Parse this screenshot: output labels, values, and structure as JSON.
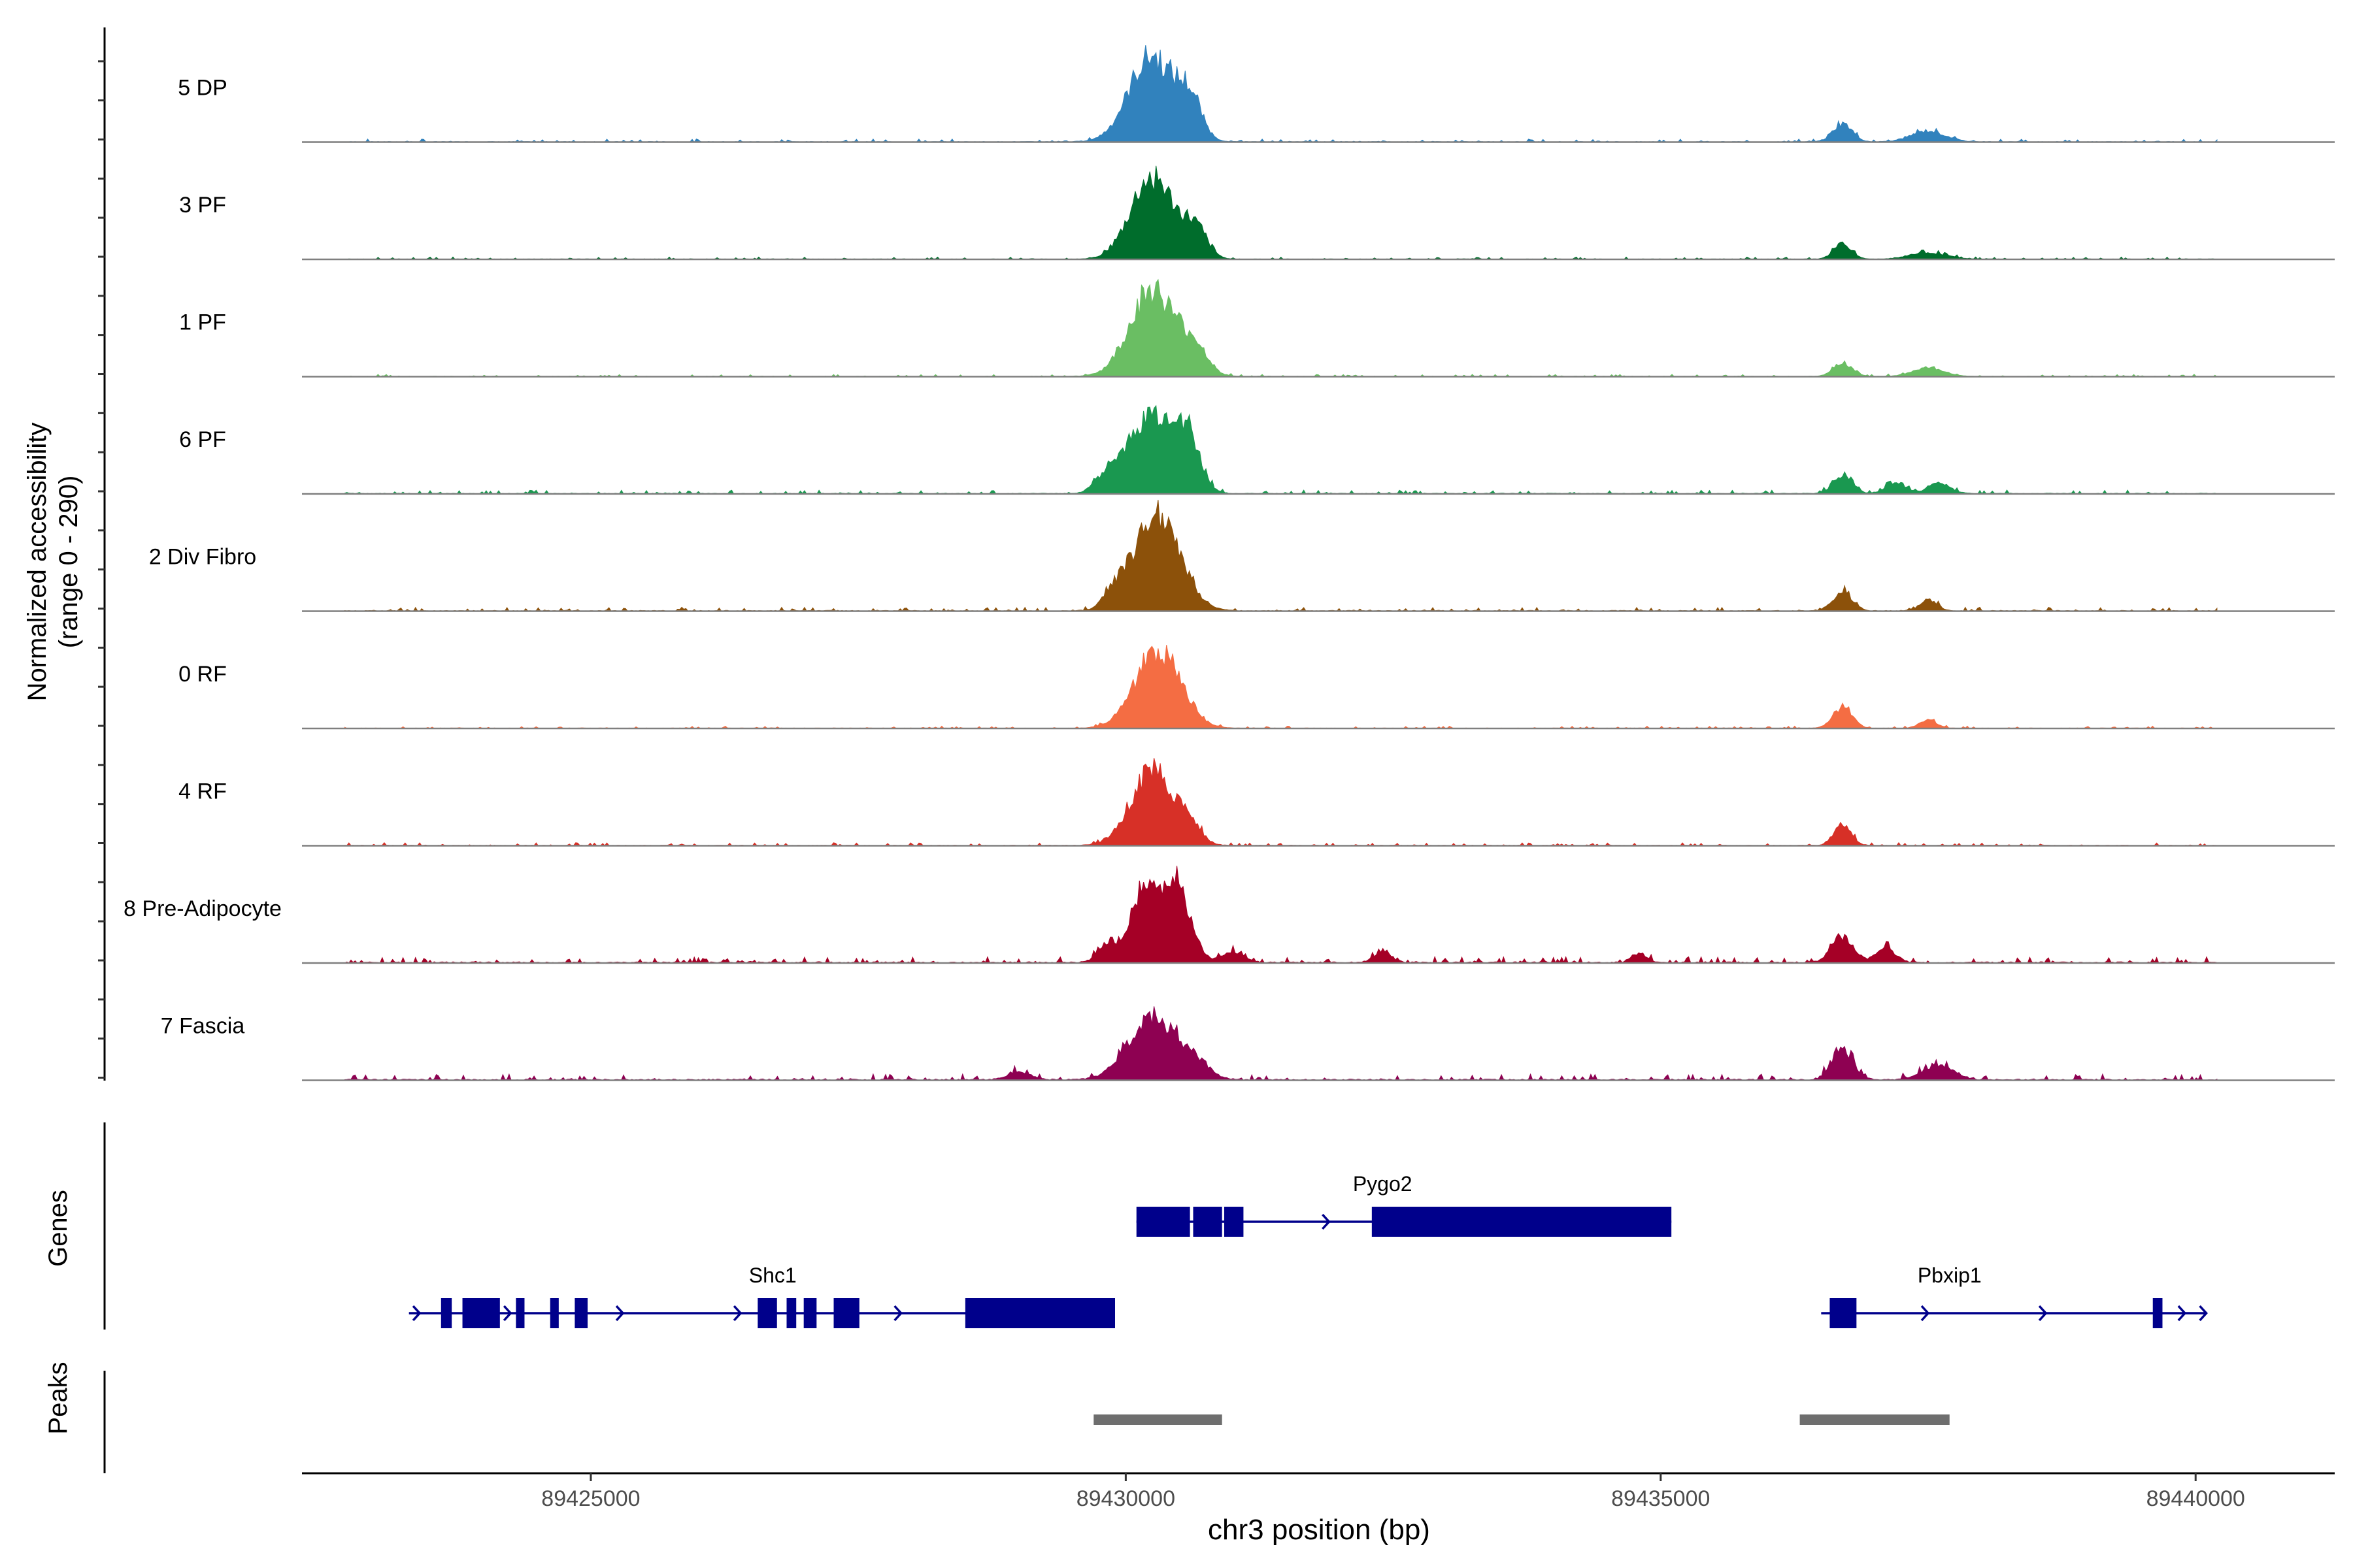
{
  "chart_data": {
    "type": "area",
    "title": "",
    "xlabel": "chr3 position (bp)",
    "xlim": [
      89422300,
      89441300
    ],
    "x_ticks": [
      89425000,
      89430000,
      89435000,
      89440000
    ],
    "x_tick_labels": [
      "89425000",
      "89430000",
      "89435000",
      "89440000"
    ],
    "coverage_ylabel_line1": "Normalized accessibility",
    "coverage_ylabel_line2": "(range 0 - 290)",
    "ylim": [
      0,
      290
    ],
    "genes_label": "Genes",
    "peaks_label": "Peaks",
    "series": [
      {
        "name": "5 DP",
        "color": "#3182BD",
        "peaks": [
          [
            89430240,
            225,
            210
          ],
          [
            89430600,
            95,
            110
          ],
          [
            89436700,
            48,
            90
          ],
          [
            89437500,
            28,
            160
          ]
        ],
        "bg": 4
      },
      {
        "name": "3 PF",
        "color": "#006D2C",
        "peaks": [
          [
            89430250,
            215,
            200
          ],
          [
            89430650,
            70,
            110
          ],
          [
            89436700,
            44,
            80
          ],
          [
            89437500,
            18,
            170
          ]
        ],
        "bg": 3
      },
      {
        "name": "1 PF",
        "color": "#6ABE63",
        "peaks": [
          [
            89430250,
            225,
            210
          ],
          [
            89430650,
            65,
            120
          ],
          [
            89436700,
            36,
            90
          ],
          [
            89437500,
            22,
            150
          ]
        ],
        "bg": 3
      },
      {
        "name": "6 PF",
        "color": "#1A9850",
        "peaks": [
          [
            89430200,
            200,
            200
          ],
          [
            89430550,
            150,
            130
          ],
          [
            89429800,
            35,
            100
          ],
          [
            89436700,
            48,
            90
          ],
          [
            89437200,
            30,
            90
          ],
          [
            89437600,
            30,
            100
          ]
        ],
        "bg": 5
      },
      {
        "name": "2 Div Fibro",
        "color": "#8C510A",
        "peaks": [
          [
            89430300,
            255,
            210
          ],
          [
            89429900,
            45,
            100
          ],
          [
            89436700,
            50,
            90
          ],
          [
            89437500,
            30,
            80
          ]
        ],
        "bg": 5
      },
      {
        "name": "0 RF",
        "color": "#F46D43",
        "peaks": [
          [
            89430300,
            205,
            210
          ],
          [
            89436700,
            55,
            90
          ],
          [
            89437500,
            22,
            80
          ]
        ],
        "bg": 3
      },
      {
        "name": "4 RF",
        "color": "#D73027",
        "peaks": [
          [
            89430250,
            195,
            200
          ],
          [
            89430600,
            45,
            100
          ],
          [
            89436700,
            60,
            80
          ]
        ],
        "bg": 4
      },
      {
        "name": "8 Pre-Adipocyte",
        "color": "#A50026",
        "peaks": [
          [
            89430200,
            200,
            160
          ],
          [
            89430500,
            170,
            120
          ],
          [
            89429800,
            35,
            80
          ],
          [
            89431000,
            30,
            100
          ],
          [
            89436700,
            70,
            100
          ],
          [
            89437100,
            40,
            90
          ],
          [
            89432400,
            28,
            80
          ],
          [
            89434800,
            24,
            70
          ]
        ],
        "bg": 8
      },
      {
        "name": "7 Fascia",
        "color": "#8E0152",
        "peaks": [
          [
            89430250,
            170,
            220
          ],
          [
            89430650,
            40,
            130
          ],
          [
            89436700,
            80,
            100
          ],
          [
            89437600,
            38,
            140
          ],
          [
            89429000,
            20,
            110
          ]
        ],
        "bg": 8
      }
    ],
    "genes": [
      {
        "name": "Pygo2",
        "color": "#00008B",
        "start": 89430100,
        "end": 89435100,
        "label_x": 89432400,
        "row": 0,
        "exons": [
          [
            89430100,
            89430600
          ],
          [
            89430630,
            89430900
          ],
          [
            89430920,
            89431100
          ],
          [
            89432300,
            89435100
          ]
        ],
        "arrows": [
          89431900,
          89433500
        ]
      },
      {
        "name": "Shc1",
        "color": "#00008B",
        "start": 89423300,
        "end": 89429900,
        "label_x": 89426700,
        "row": 1,
        "exons": [
          [
            89423600,
            89423700
          ],
          [
            89423800,
            89424150
          ],
          [
            89424300,
            89424380
          ],
          [
            89424620,
            89424700
          ],
          [
            89424850,
            89424970
          ],
          [
            89426560,
            89426740
          ],
          [
            89426830,
            89426920
          ],
          [
            89426990,
            89427110
          ],
          [
            89427270,
            89427510
          ],
          [
            89428500,
            89429900
          ]
        ],
        "arrows": [
          89423400,
          89424250,
          89425300,
          89426400,
          89427900
        ]
      },
      {
        "name": "Pbxip1",
        "color": "#00008B",
        "start": 89436500,
        "end": 89440100,
        "label_x": 89437700,
        "row": 1,
        "exons": [
          [
            89436580,
            89436830
          ],
          [
            89439600,
            89439690
          ]
        ],
        "arrows": [
          89437500,
          89438600,
          89439900,
          89440100
        ]
      }
    ],
    "peak_regions": [
      [
        89429700,
        89430900
      ],
      [
        89436300,
        89437700
      ]
    ]
  }
}
